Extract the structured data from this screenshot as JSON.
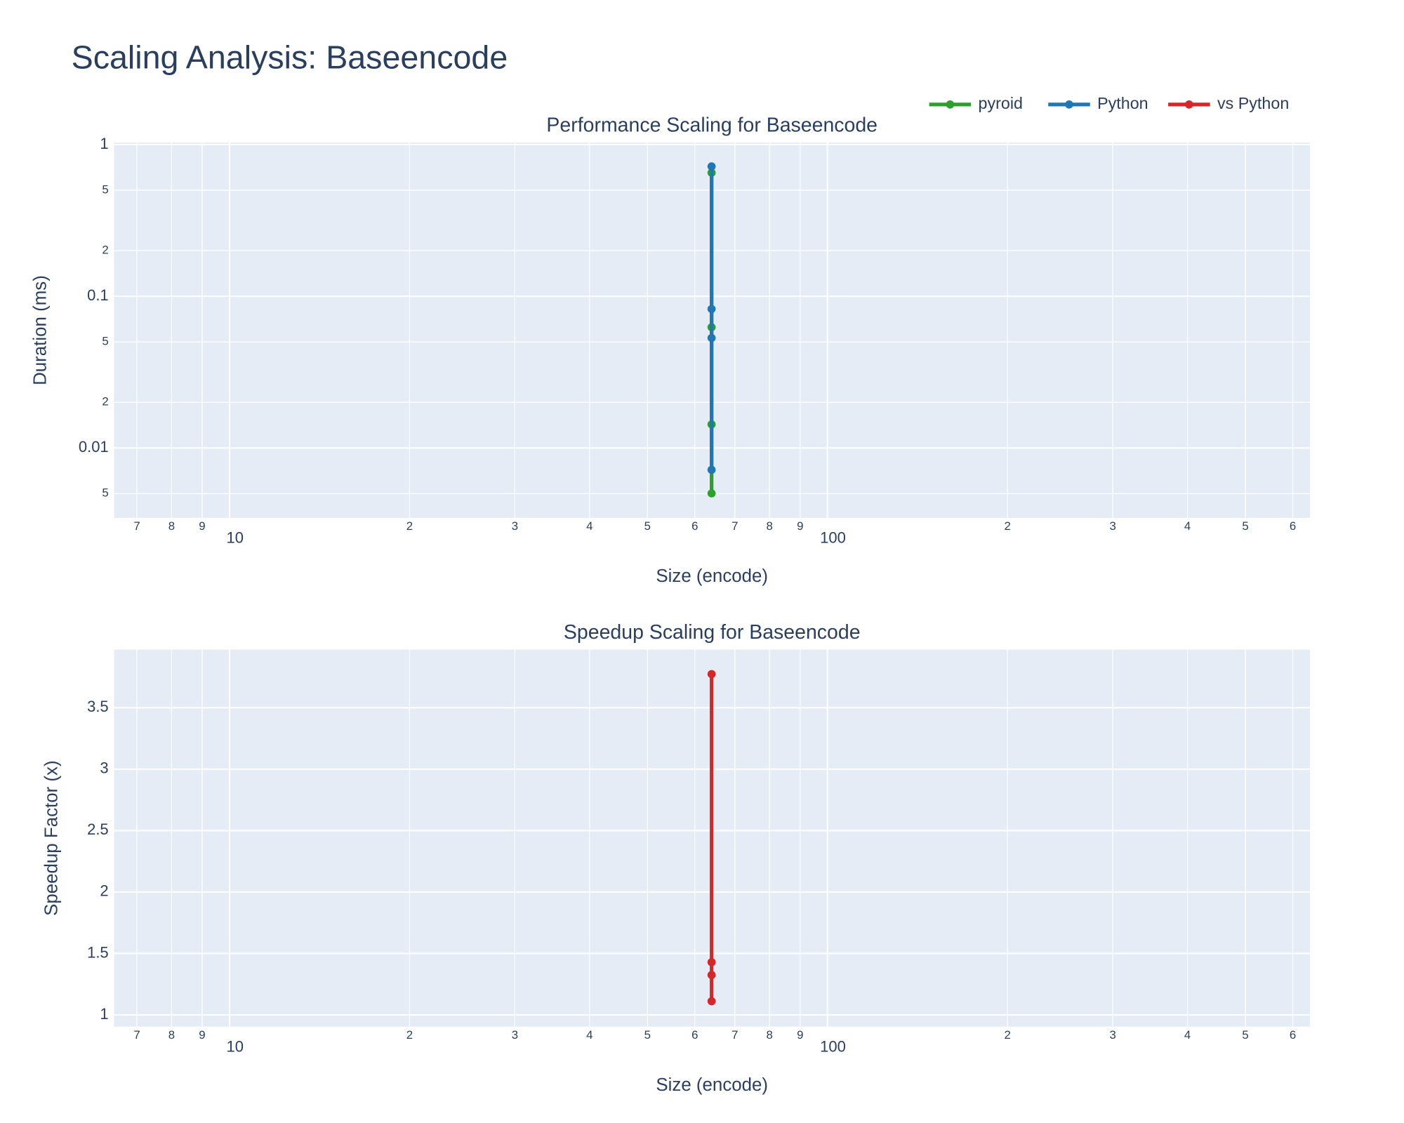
{
  "title": "Scaling Analysis: Baseencode",
  "legend": "top-right",
  "chart_data": [
    {
      "type": "line",
      "title": "Performance Scaling for Baseencode",
      "x_label": "Size (encode)",
      "y_label": "Duration (ms)",
      "xscale": "log",
      "yscale": "log",
      "grid": true,
      "xlim": [
        6.41,
        641
      ],
      "ylim": [
        0.00346,
        1.03
      ],
      "xticks": [
        7,
        8,
        9,
        10,
        {
          "value": 20,
          "label": "2"
        },
        {
          "value": 30,
          "label": "3"
        },
        {
          "value": 40,
          "label": "4"
        },
        {
          "value": 50,
          "label": "5"
        },
        {
          "value": 60,
          "label": "6"
        },
        {
          "value": 70,
          "label": "7"
        },
        {
          "value": 80,
          "label": "8"
        },
        {
          "value": 90,
          "label": "9"
        },
        100,
        {
          "value": 200,
          "label": "2"
        },
        {
          "value": 300,
          "label": "3"
        },
        {
          "value": 400,
          "label": "4"
        },
        {
          "value": 500,
          "label": "5"
        },
        {
          "value": 600,
          "label": "6"
        }
      ],
      "yticks": [
        {
          "value": 0.005,
          "label": "5"
        },
        0.01,
        {
          "value": 0.02,
          "label": "2"
        },
        {
          "value": 0.05,
          "label": "5"
        },
        0.1,
        {
          "value": 0.2,
          "label": "2"
        },
        {
          "value": 0.5,
          "label": "5"
        },
        1
      ],
      "series": [
        {
          "name": "pyroid",
          "color": "#2ca02c",
          "x": [
            64,
            64,
            64,
            64
          ],
          "values": [
            0.652,
            0.0625,
            0.0143,
            0.00502
          ]
        },
        {
          "name": "Python",
          "color": "#1f77b4",
          "x": [
            64,
            64,
            64,
            64
          ],
          "values": [
            0.718,
            0.0824,
            0.0531,
            0.00718
          ]
        }
      ]
    },
    {
      "type": "line",
      "title": "Speedup Scaling for Baseencode",
      "x_label": "Size (encode)",
      "y_label": "Speedup Factor (x)",
      "xscale": "log",
      "yscale": "linear",
      "grid": true,
      "xlim": [
        6.41,
        641
      ],
      "ylim": [
        0.904,
        3.973
      ],
      "xticks": [
        7,
        8,
        9,
        10,
        {
          "value": 20,
          "label": "2"
        },
        {
          "value": 30,
          "label": "3"
        },
        {
          "value": 40,
          "label": "4"
        },
        {
          "value": 50,
          "label": "5"
        },
        {
          "value": 60,
          "label": "6"
        },
        {
          "value": 70,
          "label": "7"
        },
        {
          "value": 80,
          "label": "8"
        },
        {
          "value": 90,
          "label": "9"
        },
        100,
        {
          "value": 200,
          "label": "2"
        },
        {
          "value": 300,
          "label": "3"
        },
        {
          "value": 400,
          "label": "4"
        },
        {
          "value": 500,
          "label": "5"
        },
        {
          "value": 600,
          "label": "6"
        }
      ],
      "yticks": [
        1,
        1.5,
        2,
        2.5,
        3,
        3.5
      ],
      "series": [
        {
          "name": "vs Python",
          "color": "#d62728",
          "x": [
            64,
            64,
            64,
            64
          ],
          "values": [
            1.111,
            1.325,
            3.774,
            1.429
          ]
        }
      ]
    }
  ]
}
